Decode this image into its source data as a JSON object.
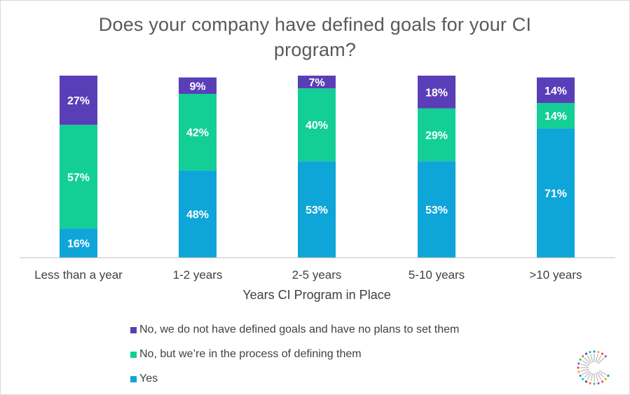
{
  "title_lines": [
    "Does your company have defined goals for your CI",
    "program?"
  ],
  "colors": {
    "yes": "#0ea5d8",
    "in_process": "#13cf96",
    "no_plans": "#5a3eb8",
    "axis": "#bfbfbf",
    "label_text": "#ffffff",
    "tick_text": "#404040"
  },
  "chart_data": {
    "type": "bar",
    "stacked": true,
    "title": "Does your company have defined goals for your CI program?",
    "xlabel": "Years CI Program in Place",
    "ylabel": "",
    "ylim": [
      0,
      100
    ],
    "categories": [
      "Less than a year",
      "1-2 years",
      "2-5 years",
      "5-10 years",
      ">10 years"
    ],
    "series": [
      {
        "name": "Yes",
        "color": "#0ea5d8",
        "values": [
          16,
          48,
          53,
          53,
          71
        ],
        "labels": [
          "16%",
          "48%",
          "53%",
          "53%",
          "71%"
        ]
      },
      {
        "name": "No, but we’re in the process of defining them",
        "color": "#13cf96",
        "values": [
          57,
          42,
          40,
          29,
          14
        ],
        "labels": [
          "57%",
          "42%",
          "40%",
          "29%",
          "14%"
        ]
      },
      {
        "name": "No, we do not have defined goals and have no plans to set them",
        "color": "#5a3eb8",
        "values": [
          27,
          9,
          7,
          18,
          14
        ],
        "labels": [
          "27%",
          "9%",
          "7%",
          "18%",
          "14%"
        ]
      }
    ],
    "grid": false,
    "legend_position": "bottom",
    "legend_order": [
      "No, we do not have defined goals and have no plans to set them",
      "No, but we’re in the process of defining them",
      "Yes"
    ]
  },
  "logo_icon": "starburst-logo-icon"
}
